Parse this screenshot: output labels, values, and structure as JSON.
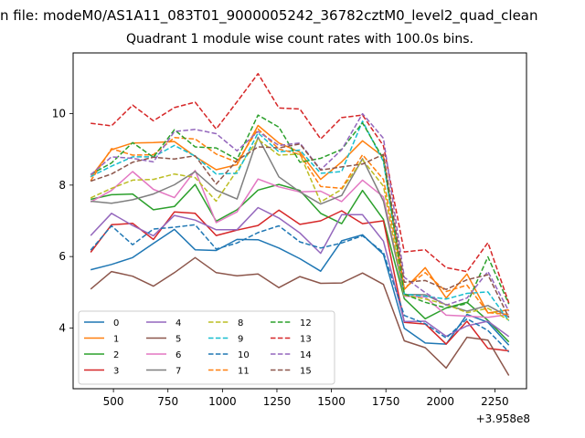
{
  "figure": {
    "suptitle": "n file: modeM0/AS1A11_083T01_9000005242_36782cztM0_level2_quad_clean",
    "x_offset_label": "+3.958e8"
  },
  "chart_data": {
    "type": "line",
    "title": "Quadrant 1 module wise count rates with 100.0s bins.",
    "xlabel": "",
    "ylabel": "",
    "x_offset": 395800000,
    "x": [
      395.6,
      491.2,
      587.9,
      683.2,
      779.6,
      875.0,
      971.5,
      1067.0,
      1163.4,
      1259.0,
      1355.3,
      1450.8,
      1547.1,
      1642.6,
      1738.6,
      1834.4,
      1930.2,
      2026.4,
      2122.1,
      2218.0,
      2313.9
    ],
    "x_display": [
      395.6,
      491.2,
      587.9,
      683.2,
      779.6,
      875.0,
      971.5,
      1067.0,
      1163.4,
      1259.0,
      1355.3,
      1450.8,
      1547.1,
      1642.6,
      1738.6,
      1834.4,
      1930.2,
      2026.4,
      2122.1,
      2218.0,
      2313.9
    ],
    "xlim": [
      315,
      2395
    ],
    "ylim": [
      2.3,
      11.7
    ],
    "xticks": [
      500,
      750,
      1000,
      1250,
      1500,
      1750,
      2000,
      2250
    ],
    "yticks": [
      4,
      6,
      8,
      10
    ],
    "grid": false,
    "legend_position": "lower-left",
    "legend_columns": 4,
    "series": [
      {
        "name": "0",
        "color": "#1f77b4",
        "dash": "solid",
        "values": [
          5.63,
          5.78,
          5.97,
          6.37,
          6.76,
          6.19,
          6.17,
          6.48,
          6.47,
          6.24,
          5.94,
          5.59,
          6.44,
          6.61,
          6.06,
          3.99,
          3.58,
          3.55,
          4.38,
          4.16,
          3.52
        ]
      },
      {
        "name": "1",
        "color": "#ff7f0e",
        "dash": "solid",
        "values": [
          8.22,
          8.99,
          9.18,
          9.19,
          9.22,
          8.8,
          8.43,
          8.57,
          9.67,
          9.18,
          8.92,
          8.16,
          8.65,
          9.24,
          8.79,
          5.08,
          5.69,
          4.84,
          5.51,
          4.42,
          4.51
        ]
      },
      {
        "name": "2",
        "color": "#2ca02c",
        "dash": "solid",
        "values": [
          7.6,
          7.73,
          7.75,
          7.31,
          7.4,
          8.02,
          6.99,
          7.31,
          7.86,
          8.02,
          7.85,
          7.21,
          6.92,
          7.85,
          7.04,
          4.82,
          4.26,
          4.56,
          4.72,
          4.21,
          3.61
        ]
      },
      {
        "name": "3",
        "color": "#d62728",
        "dash": "solid",
        "values": [
          6.12,
          6.89,
          6.93,
          6.48,
          7.25,
          7.21,
          6.59,
          6.74,
          6.87,
          7.3,
          6.9,
          7.0,
          7.28,
          6.92,
          7.0,
          4.16,
          4.11,
          3.55,
          4.19,
          3.43,
          3.36
        ]
      },
      {
        "name": "4",
        "color": "#9467bd",
        "dash": "solid",
        "values": [
          6.59,
          7.21,
          6.87,
          6.58,
          7.15,
          7.02,
          6.75,
          6.75,
          7.37,
          7.08,
          6.66,
          6.09,
          7.17,
          7.17,
          6.43,
          4.18,
          4.19,
          3.77,
          4.06,
          4.19,
          3.76
        ]
      },
      {
        "name": "5",
        "color": "#8c564b",
        "dash": "solid",
        "values": [
          5.09,
          5.58,
          5.45,
          5.17,
          5.55,
          5.97,
          5.55,
          5.46,
          5.51,
          5.13,
          5.44,
          5.25,
          5.26,
          5.54,
          5.22,
          3.64,
          3.45,
          2.88,
          3.74,
          3.66,
          2.67
        ]
      },
      {
        "name": "6",
        "color": "#e377c2",
        "dash": "solid",
        "values": [
          7.53,
          7.85,
          8.38,
          7.88,
          7.65,
          8.41,
          6.95,
          7.25,
          8.17,
          7.95,
          7.81,
          7.83,
          7.54,
          8.14,
          7.67,
          4.89,
          4.87,
          4.36,
          4.33,
          4.3,
          4.38
        ]
      },
      {
        "name": "7",
        "color": "#7f7f7f",
        "dash": "solid",
        "values": [
          7.55,
          7.49,
          7.59,
          7.75,
          8.01,
          8.38,
          7.86,
          7.61,
          9.34,
          8.23,
          7.81,
          7.47,
          7.71,
          8.74,
          7.55,
          4.94,
          4.93,
          4.65,
          4.47,
          4.63,
          4.31
        ]
      },
      {
        "name": "8",
        "color": "#bcbd22",
        "dash": "dashed",
        "values": [
          7.64,
          7.91,
          8.14,
          8.16,
          8.31,
          8.21,
          7.55,
          8.41,
          9.28,
          8.84,
          8.87,
          7.53,
          7.88,
          8.71,
          7.97,
          4.92,
          4.81,
          4.66,
          4.43,
          4.55,
          4.22
        ]
      },
      {
        "name": "9",
        "color": "#17becf",
        "dash": "dashed",
        "values": [
          8.24,
          8.53,
          8.79,
          8.79,
          9.11,
          8.81,
          8.31,
          8.33,
          9.46,
          8.93,
          8.98,
          8.33,
          8.38,
          9.79,
          8.66,
          4.95,
          4.89,
          4.81,
          4.97,
          5.01,
          4.2
        ]
      },
      {
        "name": "10",
        "color": "#1f77b4",
        "dash": "dashed",
        "values": [
          6.18,
          6.86,
          6.33,
          6.77,
          6.82,
          6.89,
          6.21,
          6.38,
          6.67,
          6.86,
          6.41,
          6.24,
          6.38,
          6.58,
          6.11,
          4.35,
          4.12,
          3.72,
          4.26,
          3.93,
          3.33
        ]
      },
      {
        "name": "11",
        "color": "#ff7f0e",
        "dash": "dashed",
        "values": [
          8.12,
          9.02,
          8.84,
          8.85,
          9.33,
          9.29,
          8.87,
          8.64,
          9.57,
          9.01,
          8.86,
          7.96,
          7.91,
          8.85,
          8.16,
          5.12,
          5.55,
          5.02,
          5.2,
          4.43,
          4.38
        ]
      },
      {
        "name": "12",
        "color": "#2ca02c",
        "dash": "dashed",
        "values": [
          8.3,
          8.62,
          9.19,
          8.78,
          9.55,
          9.07,
          9.04,
          8.72,
          9.96,
          9.62,
          8.64,
          8.75,
          9.0,
          9.74,
          8.73,
          4.95,
          4.72,
          4.56,
          4.68,
          5.99,
          4.67
        ]
      },
      {
        "name": "13",
        "color": "#d62728",
        "dash": "dashed",
        "values": [
          9.73,
          9.66,
          10.24,
          9.8,
          10.17,
          10.32,
          9.57,
          10.33,
          11.12,
          10.16,
          10.13,
          9.29,
          9.89,
          9.96,
          9.1,
          6.13,
          6.19,
          5.69,
          5.58,
          6.39,
          4.7
        ]
      },
      {
        "name": "14",
        "color": "#9467bd",
        "dash": "dashed",
        "values": [
          8.29,
          8.79,
          8.75,
          8.65,
          9.5,
          9.56,
          9.44,
          8.96,
          9.5,
          9.11,
          9.18,
          8.43,
          8.99,
          10.0,
          9.31,
          5.42,
          4.99,
          4.64,
          4.84,
          5.58,
          4.47
        ]
      },
      {
        "name": "15",
        "color": "#8c564b",
        "dash": "dashed",
        "values": [
          8.11,
          8.31,
          8.64,
          8.78,
          8.73,
          8.82,
          8.03,
          8.69,
          9.07,
          9.04,
          9.15,
          8.42,
          8.51,
          8.59,
          8.86,
          5.28,
          5.33,
          5.08,
          5.35,
          5.49,
          4.29
        ]
      }
    ]
  }
}
